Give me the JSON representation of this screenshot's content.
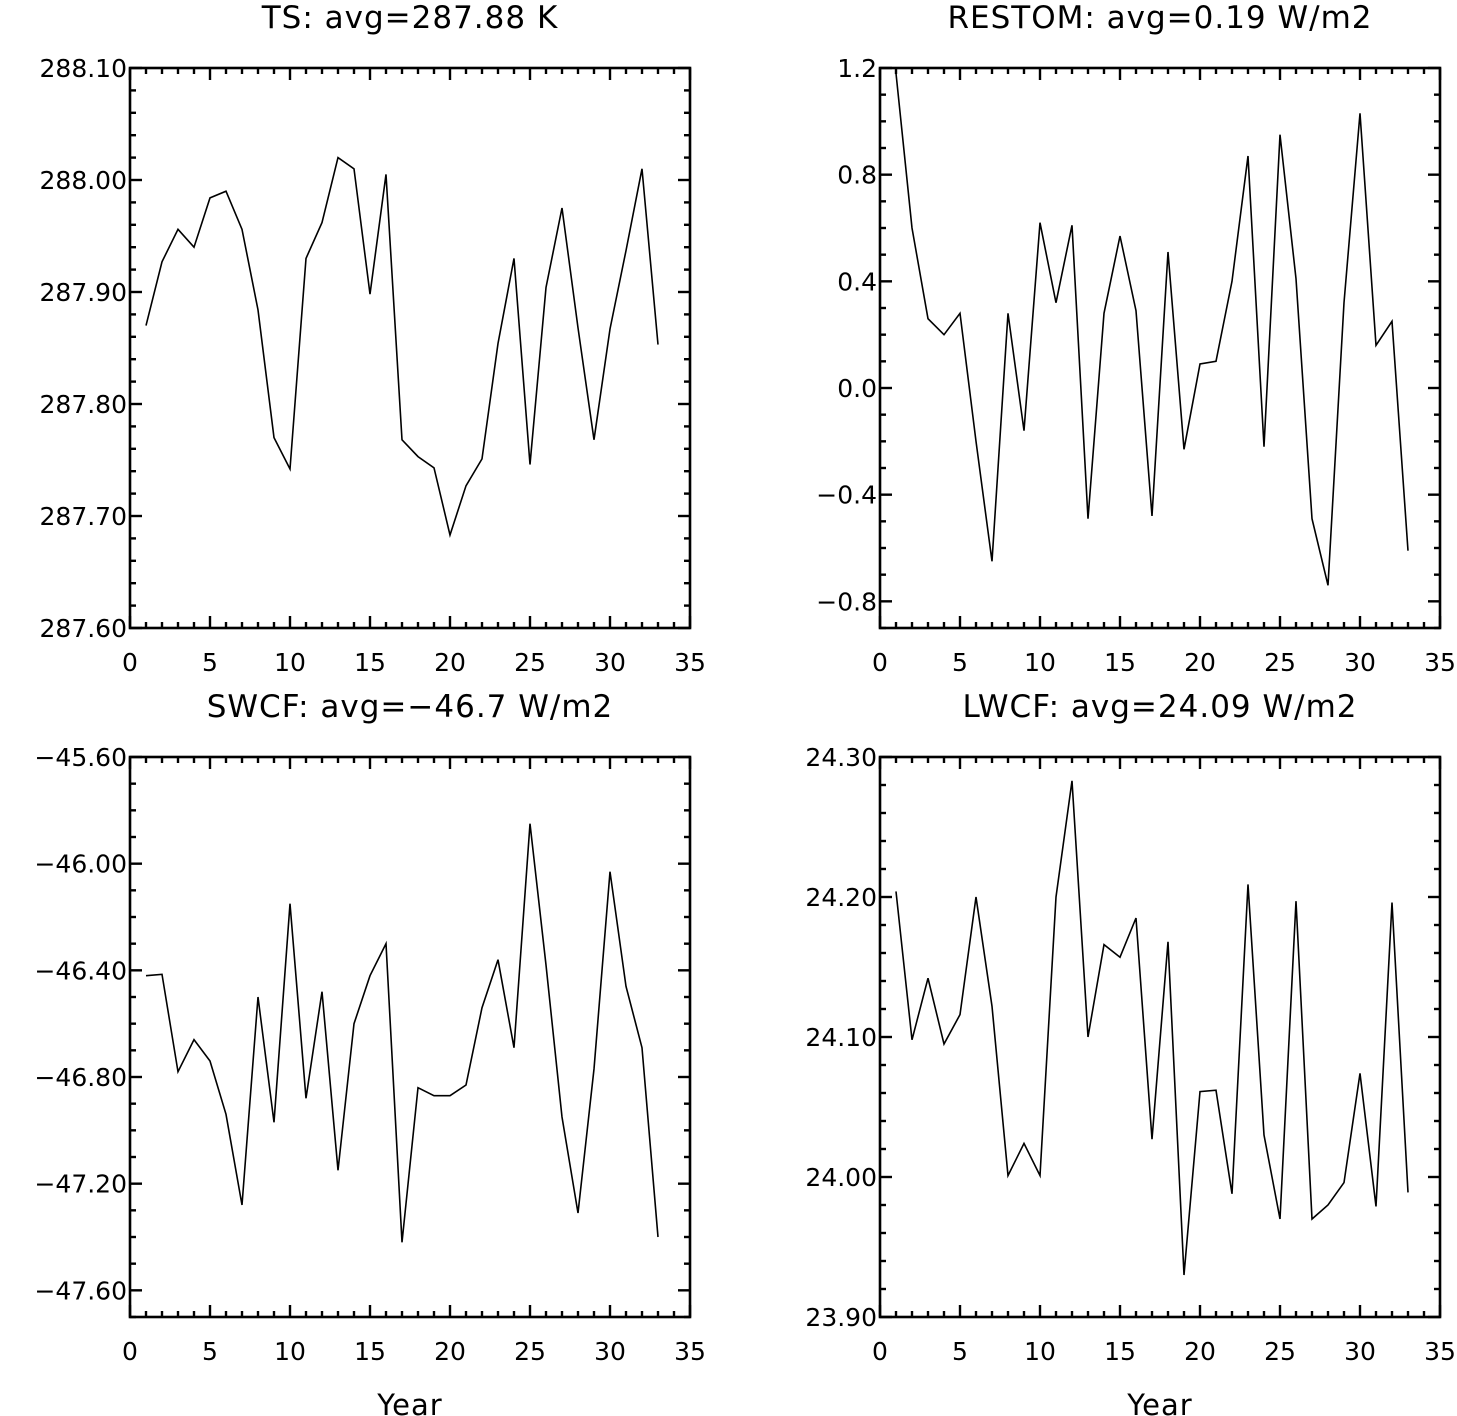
{
  "chart_data": [
    {
      "type": "line",
      "title": "TS: avg=287.88 K",
      "xlabel": "",
      "ylabel": "",
      "xlim": [
        0,
        35
      ],
      "ylim": [
        287.6,
        288.1
      ],
      "x_ticks": [
        0,
        5,
        10,
        15,
        20,
        25,
        30,
        35
      ],
      "x_minor_step": 1,
      "y_ticks": [
        "287.60",
        "287.70",
        "287.80",
        "287.90",
        "288.00",
        "288.10"
      ],
      "y_minor_per_major": 5,
      "grid": false,
      "x": [
        1,
        2,
        3,
        4,
        5,
        6,
        7,
        8,
        9,
        10,
        11,
        12,
        13,
        14,
        15,
        16,
        17,
        18,
        19,
        20,
        21,
        22,
        23,
        24,
        25,
        26,
        27,
        28,
        29,
        30,
        31,
        32,
        33
      ],
      "values": [
        287.87,
        287.927,
        287.956,
        287.94,
        287.984,
        287.99,
        287.956,
        287.884,
        287.77,
        287.742,
        287.93,
        287.962,
        288.02,
        288.01,
        287.898,
        288.005,
        287.768,
        287.753,
        287.743,
        287.683,
        287.727,
        287.751,
        287.854,
        287.93,
        287.746,
        287.904,
        287.975,
        287.868,
        287.768,
        287.867,
        287.937,
        288.01,
        287.853
      ]
    },
    {
      "type": "line",
      "title": "RESTOM: avg=0.19 W/m2",
      "xlabel": "",
      "ylabel": "",
      "xlim": [
        0,
        35
      ],
      "ylim": [
        -0.9,
        1.2
      ],
      "x_ticks": [
        0,
        5,
        10,
        15,
        20,
        25,
        30,
        35
      ],
      "x_minor_step": 1,
      "y_ticks": [
        "−0.8",
        "−0.4",
        "0.0",
        "0.4",
        "0.8",
        "1.2"
      ],
      "y_minor_per_major": 4,
      "grid": false,
      "x": [
        1,
        2,
        3,
        4,
        5,
        6,
        7,
        8,
        9,
        10,
        11,
        12,
        13,
        14,
        15,
        16,
        17,
        18,
        19,
        20,
        21,
        22,
        23,
        24,
        25,
        26,
        27,
        28,
        29,
        30,
        31,
        32,
        33
      ],
      "values": [
        1.18,
        0.6,
        0.26,
        0.2,
        0.28,
        -0.2,
        -0.65,
        0.28,
        -0.16,
        0.62,
        0.32,
        0.61,
        -0.49,
        0.28,
        0.57,
        0.29,
        -0.48,
        0.51,
        -0.23,
        0.09,
        0.1,
        0.4,
        0.87,
        -0.22,
        0.95,
        0.41,
        -0.49,
        -0.74,
        0.32,
        1.03,
        0.16,
        0.25,
        -0.61
      ]
    },
    {
      "type": "line",
      "title": "SWCF: avg=−46.7 W/m2",
      "xlabel": "Year",
      "ylabel": "",
      "xlim": [
        0,
        35
      ],
      "ylim": [
        -47.7,
        -45.6
      ],
      "x_ticks": [
        0,
        5,
        10,
        15,
        20,
        25,
        30,
        35
      ],
      "x_minor_step": 1,
      "y_ticks": [
        "−47.60",
        "−47.20",
        "−46.80",
        "−46.40",
        "−46.00",
        "−45.60"
      ],
      "y_minor_per_major": 4,
      "grid": false,
      "x": [
        1,
        2,
        3,
        4,
        5,
        6,
        7,
        8,
        9,
        10,
        11,
        12,
        13,
        14,
        15,
        16,
        17,
        18,
        19,
        20,
        21,
        22,
        23,
        24,
        25,
        26,
        27,
        28,
        29,
        30,
        31,
        32,
        33
      ],
      "values": [
        -46.42,
        -46.415,
        -46.78,
        -46.66,
        -46.74,
        -46.94,
        -47.28,
        -46.5,
        -46.97,
        -46.15,
        -46.88,
        -46.48,
        -47.15,
        -46.6,
        -46.42,
        -46.3,
        -47.42,
        -46.84,
        -46.87,
        -46.87,
        -46.83,
        -46.54,
        -46.36,
        -46.69,
        -45.85,
        -46.38,
        -46.95,
        -47.31,
        -46.77,
        -46.03,
        -46.46,
        -46.69,
        -47.4
      ]
    },
    {
      "type": "line",
      "title": "LWCF: avg=24.09 W/m2",
      "xlabel": "Year",
      "ylabel": "",
      "xlim": [
        0,
        35
      ],
      "ylim": [
        23.9,
        24.3
      ],
      "x_ticks": [
        0,
        5,
        10,
        15,
        20,
        25,
        30,
        35
      ],
      "x_minor_step": 1,
      "y_ticks": [
        "23.90",
        "24.00",
        "24.10",
        "24.20",
        "24.30"
      ],
      "y_minor_per_major": 5,
      "grid": false,
      "x": [
        1,
        2,
        3,
        4,
        5,
        6,
        7,
        8,
        9,
        10,
        11,
        12,
        13,
        14,
        15,
        16,
        17,
        18,
        19,
        20,
        21,
        22,
        23,
        24,
        25,
        26,
        27,
        28,
        29,
        30,
        31,
        32,
        33
      ],
      "values": [
        24.204,
        24.098,
        24.142,
        24.095,
        24.116,
        24.2,
        24.122,
        24.001,
        24.024,
        24.001,
        24.2,
        24.283,
        24.1,
        24.166,
        24.157,
        24.185,
        24.027,
        24.168,
        23.93,
        24.061,
        24.062,
        23.988,
        24.209,
        24.03,
        23.97,
        24.197,
        23.97,
        23.98,
        23.996,
        24.074,
        23.979,
        24.196,
        23.989
      ]
    }
  ]
}
